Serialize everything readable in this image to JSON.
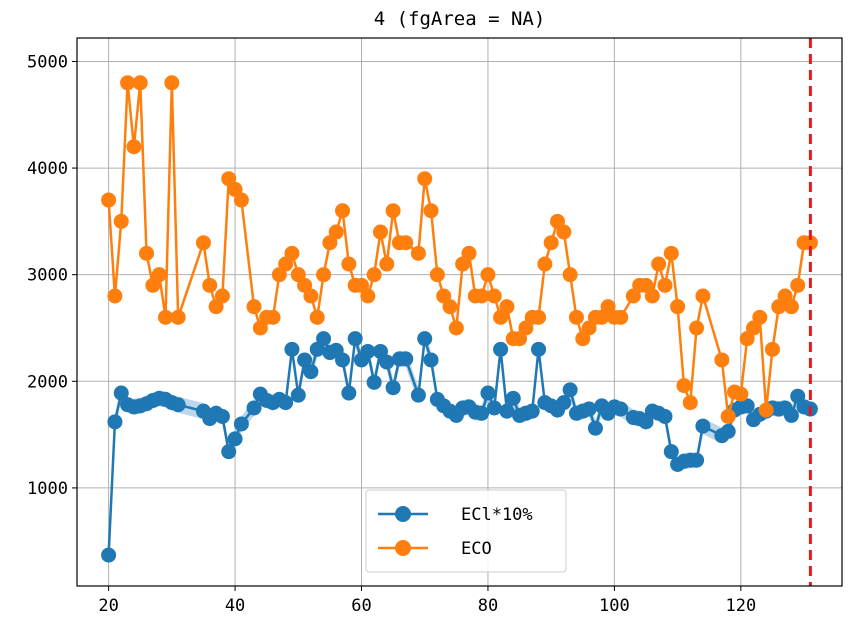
{
  "chart_data": {
    "type": "line",
    "title": "4 (fgArea = NA)",
    "xlim": [
      15,
      136
    ],
    "ylim": [
      80,
      5220
    ],
    "xticks": [
      20,
      40,
      60,
      80,
      100,
      120
    ],
    "yticks": [
      1000,
      2000,
      3000,
      4000,
      5000
    ],
    "grid": true,
    "legend_position": "lower-center",
    "vline": {
      "x": 131,
      "color": "#e41a1c",
      "style": "dashed"
    },
    "colors": {
      "eci": "#1f77b4",
      "eco": "#ff7f0e",
      "band": "#a6c8e4"
    },
    "series": [
      {
        "name": "ECl*10%",
        "x": [
          20,
          21,
          22,
          23,
          24,
          25,
          26,
          27,
          28,
          29,
          30,
          31,
          35,
          36,
          37,
          38,
          39,
          40,
          41,
          43,
          44,
          45,
          46,
          47,
          48,
          49,
          50,
          51,
          52,
          53,
          54,
          55,
          56,
          57,
          58,
          59,
          60,
          61,
          62,
          63,
          64,
          65,
          66,
          67,
          69,
          70,
          71,
          72,
          73,
          74,
          75,
          76,
          77,
          78,
          79,
          80,
          81,
          82,
          83,
          84,
          85,
          86,
          87,
          88,
          89,
          90,
          91,
          92,
          93,
          94,
          95,
          96,
          97,
          98,
          99,
          100,
          101,
          103,
          104,
          105,
          106,
          107,
          108,
          109,
          110,
          111,
          112,
          113,
          114,
          117,
          118,
          119,
          120,
          121,
          122,
          123,
          124,
          125,
          126,
          127,
          128,
          129,
          130,
          131
        ],
        "y": [
          370,
          1620,
          1890,
          1780,
          1760,
          1770,
          1790,
          1820,
          1840,
          1830,
          1800,
          1780,
          1720,
          1650,
          1700,
          1670,
          1340,
          1460,
          1600,
          1750,
          1880,
          1820,
          1800,
          1830,
          1800,
          2300,
          1870,
          2200,
          2090,
          2300,
          2400,
          2270,
          2290,
          2200,
          1890,
          2400,
          2200,
          2280,
          1990,
          2280,
          2180,
          1940,
          2210,
          2210,
          1870,
          2400,
          2200,
          1830,
          1770,
          1720,
          1680,
          1750,
          1760,
          1710,
          1700,
          1890,
          1750,
          2300,
          1720,
          1840,
          1680,
          1700,
          1720,
          2300,
          1800,
          1770,
          1730,
          1800,
          1920,
          1700,
          1720,
          1740,
          1560,
          1770,
          1700,
          1760,
          1740,
          1660,
          1650,
          1620,
          1720,
          1700,
          1670,
          1340,
          1220,
          1250,
          1260,
          1260,
          1580,
          1490,
          1530,
          1730,
          1760,
          1770,
          1640,
          1690,
          1720,
          1750,
          1740,
          1750,
          1680,
          1860,
          1760,
          1740
        ],
        "band": 75
      },
      {
        "name": "ECO",
        "x": [
          20,
          21,
          22,
          23,
          24,
          25,
          26,
          27,
          28,
          29,
          30,
          31,
          35,
          36,
          37,
          38,
          39,
          40,
          41,
          43,
          44,
          45,
          46,
          47,
          48,
          49,
          50,
          51,
          52,
          53,
          54,
          55,
          56,
          57,
          58,
          59,
          60,
          61,
          62,
          63,
          64,
          65,
          66,
          67,
          69,
          70,
          71,
          72,
          73,
          74,
          75,
          76,
          77,
          78,
          79,
          80,
          81,
          82,
          83,
          84,
          85,
          86,
          87,
          88,
          89,
          90,
          91,
          92,
          93,
          94,
          95,
          96,
          97,
          98,
          99,
          100,
          101,
          103,
          104,
          105,
          106,
          107,
          108,
          109,
          110,
          111,
          112,
          113,
          114,
          117,
          118,
          119,
          120,
          121,
          122,
          123,
          124,
          125,
          126,
          127,
          128,
          129,
          130,
          131
        ],
        "y": [
          3700,
          2800,
          3500,
          4800,
          4200,
          4800,
          3200,
          2900,
          3000,
          2600,
          4800,
          2600,
          3300,
          2900,
          2700,
          2800,
          3900,
          3800,
          3700,
          2700,
          2500,
          2600,
          2600,
          3000,
          3100,
          3200,
          3000,
          2900,
          2800,
          2600,
          3000,
          3300,
          3400,
          3600,
          3100,
          2900,
          2900,
          2800,
          3000,
          3400,
          3100,
          3600,
          3300,
          3300,
          3200,
          3900,
          3600,
          3000,
          2800,
          2700,
          2500,
          3100,
          3200,
          2800,
          2800,
          3000,
          2800,
          2600,
          2700,
          2400,
          2400,
          2500,
          2600,
          2600,
          3100,
          3300,
          3500,
          3400,
          3000,
          2600,
          2400,
          2500,
          2600,
          2600,
          2700,
          2600,
          2600,
          2800,
          2900,
          2900,
          2800,
          3100,
          2900,
          3200,
          2700,
          1960,
          1800,
          2500,
          2800,
          2200,
          1670,
          1900,
          1880,
          2400,
          2500,
          2600,
          1730,
          2300,
          2700,
          2800,
          2700,
          2900,
          3300,
          3300
        ]
      }
    ]
  }
}
